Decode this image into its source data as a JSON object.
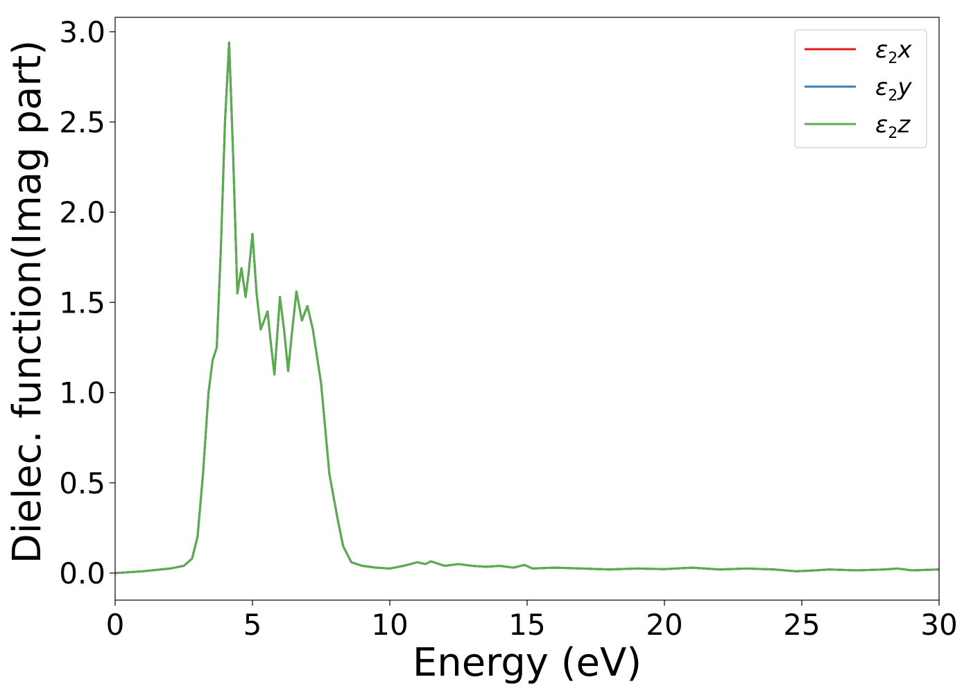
{
  "chart_data": {
    "type": "line",
    "xlabel": "Energy (eV)",
    "ylabel": "Dielec. function(Imag part)",
    "xlim": [
      0,
      30
    ],
    "ylim": [
      -0.15,
      3.08
    ],
    "x_ticks": [
      "0",
      "5",
      "10",
      "15",
      "20",
      "25",
      "30"
    ],
    "y_ticks": [
      "0.0",
      "0.5",
      "1.0",
      "1.5",
      "2.0",
      "2.5",
      "3.0"
    ],
    "grid": false,
    "legend_position": "top-right",
    "series": [
      {
        "name": "ε₂x",
        "legend_base": "ε",
        "legend_sub": "2",
        "legend_suffix": "x",
        "color": "#e41a1c",
        "points": [
          [
            0,
            0.0
          ],
          [
            1,
            0.01
          ],
          [
            2,
            0.025
          ],
          [
            2.5,
            0.04
          ],
          [
            2.8,
            0.08
          ],
          [
            3.0,
            0.2
          ],
          [
            3.2,
            0.55
          ],
          [
            3.4,
            1.0
          ],
          [
            3.55,
            1.18
          ],
          [
            3.7,
            1.25
          ],
          [
            3.85,
            1.8
          ],
          [
            4.0,
            2.5
          ],
          [
            4.15,
            2.94
          ],
          [
            4.3,
            2.3
          ],
          [
            4.45,
            1.55
          ],
          [
            4.6,
            1.69
          ],
          [
            4.75,
            1.53
          ],
          [
            4.85,
            1.65
          ],
          [
            5.0,
            1.88
          ],
          [
            5.15,
            1.55
          ],
          [
            5.3,
            1.35
          ],
          [
            5.55,
            1.45
          ],
          [
            5.65,
            1.3
          ],
          [
            5.8,
            1.1
          ],
          [
            6.0,
            1.53
          ],
          [
            6.15,
            1.35
          ],
          [
            6.3,
            1.12
          ],
          [
            6.45,
            1.35
          ],
          [
            6.6,
            1.56
          ],
          [
            6.8,
            1.4
          ],
          [
            7.0,
            1.48
          ],
          [
            7.2,
            1.35
          ],
          [
            7.5,
            1.05
          ],
          [
            7.8,
            0.55
          ],
          [
            8.1,
            0.3
          ],
          [
            8.3,
            0.15
          ],
          [
            8.6,
            0.06
          ],
          [
            9.0,
            0.04
          ],
          [
            9.5,
            0.03
          ],
          [
            10,
            0.025
          ],
          [
            10.5,
            0.04
          ],
          [
            11,
            0.06
          ],
          [
            11.3,
            0.05
          ],
          [
            11.5,
            0.065
          ],
          [
            12,
            0.04
          ],
          [
            12.5,
            0.05
          ],
          [
            13,
            0.04
          ],
          [
            13.5,
            0.035
          ],
          [
            14,
            0.04
          ],
          [
            14.5,
            0.03
          ],
          [
            14.9,
            0.045
          ],
          [
            15.2,
            0.025
          ],
          [
            16,
            0.03
          ],
          [
            17,
            0.025
          ],
          [
            18,
            0.02
          ],
          [
            19,
            0.025
          ],
          [
            20,
            0.022
          ],
          [
            21,
            0.03
          ],
          [
            22,
            0.02
          ],
          [
            23,
            0.025
          ],
          [
            24,
            0.02
          ],
          [
            24.8,
            0.01
          ],
          [
            25.5,
            0.015
          ],
          [
            26,
            0.02
          ],
          [
            27,
            0.015
          ],
          [
            28,
            0.02
          ],
          [
            28.5,
            0.025
          ],
          [
            29,
            0.015
          ],
          [
            30,
            0.02
          ]
        ]
      },
      {
        "name": "ε₂y",
        "legend_base": "ε",
        "legend_sub": "2",
        "legend_suffix": "y",
        "color": "#377eb8",
        "points": [
          [
            0,
            0.0
          ],
          [
            1,
            0.01
          ],
          [
            2,
            0.025
          ],
          [
            2.5,
            0.04
          ],
          [
            2.8,
            0.08
          ],
          [
            3.0,
            0.2
          ],
          [
            3.2,
            0.55
          ],
          [
            3.4,
            1.0
          ],
          [
            3.55,
            1.18
          ],
          [
            3.7,
            1.25
          ],
          [
            3.85,
            1.8
          ],
          [
            4.0,
            2.5
          ],
          [
            4.15,
            2.94
          ],
          [
            4.3,
            2.3
          ],
          [
            4.45,
            1.55
          ],
          [
            4.6,
            1.69
          ],
          [
            4.75,
            1.53
          ],
          [
            4.85,
            1.65
          ],
          [
            5.0,
            1.88
          ],
          [
            5.15,
            1.55
          ],
          [
            5.3,
            1.35
          ],
          [
            5.55,
            1.45
          ],
          [
            5.65,
            1.3
          ],
          [
            5.8,
            1.1
          ],
          [
            6.0,
            1.53
          ],
          [
            6.15,
            1.35
          ],
          [
            6.3,
            1.12
          ],
          [
            6.45,
            1.35
          ],
          [
            6.6,
            1.56
          ],
          [
            6.8,
            1.4
          ],
          [
            7.0,
            1.48
          ],
          [
            7.2,
            1.35
          ],
          [
            7.5,
            1.05
          ],
          [
            7.8,
            0.55
          ],
          [
            8.1,
            0.3
          ],
          [
            8.3,
            0.15
          ],
          [
            8.6,
            0.06
          ],
          [
            9.0,
            0.04
          ],
          [
            9.5,
            0.03
          ],
          [
            10,
            0.025
          ],
          [
            10.5,
            0.04
          ],
          [
            11,
            0.06
          ],
          [
            11.3,
            0.05
          ],
          [
            11.5,
            0.065
          ],
          [
            12,
            0.04
          ],
          [
            12.5,
            0.05
          ],
          [
            13,
            0.04
          ],
          [
            13.5,
            0.035
          ],
          [
            14,
            0.04
          ],
          [
            14.5,
            0.03
          ],
          [
            14.9,
            0.045
          ],
          [
            15.2,
            0.025
          ],
          [
            16,
            0.03
          ],
          [
            17,
            0.025
          ],
          [
            18,
            0.02
          ],
          [
            19,
            0.025
          ],
          [
            20,
            0.022
          ],
          [
            21,
            0.03
          ],
          [
            22,
            0.02
          ],
          [
            23,
            0.025
          ],
          [
            24,
            0.02
          ],
          [
            24.8,
            0.01
          ],
          [
            25.5,
            0.015
          ],
          [
            26,
            0.02
          ],
          [
            27,
            0.015
          ],
          [
            28,
            0.02
          ],
          [
            28.5,
            0.025
          ],
          [
            29,
            0.015
          ],
          [
            30,
            0.02
          ]
        ]
      },
      {
        "name": "ε₂z",
        "legend_base": "ε",
        "legend_sub": "2",
        "legend_suffix": "z",
        "color": "#5aac4f",
        "points": [
          [
            0,
            0.0
          ],
          [
            1,
            0.01
          ],
          [
            2,
            0.025
          ],
          [
            2.5,
            0.04
          ],
          [
            2.8,
            0.08
          ],
          [
            3.0,
            0.2
          ],
          [
            3.2,
            0.55
          ],
          [
            3.4,
            1.0
          ],
          [
            3.55,
            1.18
          ],
          [
            3.7,
            1.25
          ],
          [
            3.85,
            1.8
          ],
          [
            4.0,
            2.5
          ],
          [
            4.15,
            2.94
          ],
          [
            4.3,
            2.3
          ],
          [
            4.45,
            1.55
          ],
          [
            4.6,
            1.69
          ],
          [
            4.75,
            1.53
          ],
          [
            4.85,
            1.65
          ],
          [
            5.0,
            1.88
          ],
          [
            5.15,
            1.55
          ],
          [
            5.3,
            1.35
          ],
          [
            5.55,
            1.45
          ],
          [
            5.65,
            1.3
          ],
          [
            5.8,
            1.1
          ],
          [
            6.0,
            1.53
          ],
          [
            6.15,
            1.35
          ],
          [
            6.3,
            1.12
          ],
          [
            6.45,
            1.35
          ],
          [
            6.6,
            1.56
          ],
          [
            6.8,
            1.4
          ],
          [
            7.0,
            1.48
          ],
          [
            7.2,
            1.35
          ],
          [
            7.5,
            1.05
          ],
          [
            7.8,
            0.55
          ],
          [
            8.1,
            0.3
          ],
          [
            8.3,
            0.15
          ],
          [
            8.6,
            0.06
          ],
          [
            9.0,
            0.04
          ],
          [
            9.5,
            0.03
          ],
          [
            10,
            0.025
          ],
          [
            10.5,
            0.04
          ],
          [
            11,
            0.06
          ],
          [
            11.3,
            0.05
          ],
          [
            11.5,
            0.065
          ],
          [
            12,
            0.04
          ],
          [
            12.5,
            0.05
          ],
          [
            13,
            0.04
          ],
          [
            13.5,
            0.035
          ],
          [
            14,
            0.04
          ],
          [
            14.5,
            0.03
          ],
          [
            14.9,
            0.045
          ],
          [
            15.2,
            0.025
          ],
          [
            16,
            0.03
          ],
          [
            17,
            0.025
          ],
          [
            18,
            0.02
          ],
          [
            19,
            0.025
          ],
          [
            20,
            0.022
          ],
          [
            21,
            0.03
          ],
          [
            22,
            0.02
          ],
          [
            23,
            0.025
          ],
          [
            24,
            0.02
          ],
          [
            24.8,
            0.01
          ],
          [
            25.5,
            0.015
          ],
          [
            26,
            0.02
          ],
          [
            27,
            0.015
          ],
          [
            28,
            0.02
          ],
          [
            28.5,
            0.025
          ],
          [
            29,
            0.015
          ],
          [
            30,
            0.02
          ]
        ]
      }
    ]
  }
}
